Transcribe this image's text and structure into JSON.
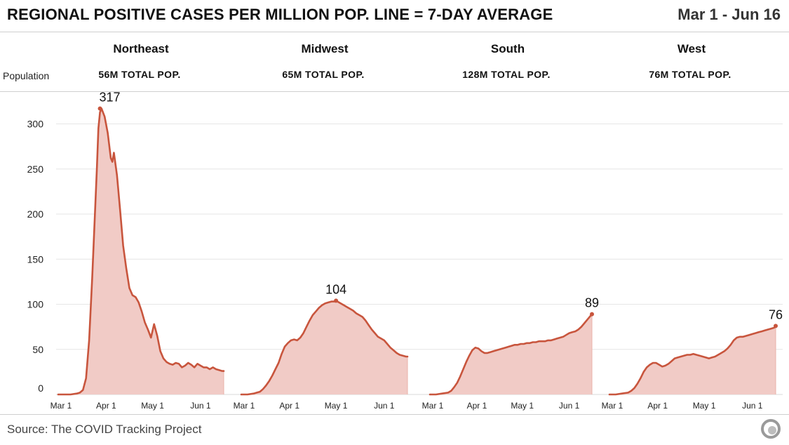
{
  "header": {
    "title": "REGIONAL POSITIVE CASES PER MILLION POP. LINE = 7-DAY AVERAGE",
    "date_range": "Mar 1 - Jun 16",
    "population_label": "Population"
  },
  "footer": {
    "source": "Source: The COVID Tracking Project",
    "logo_icon": "covid-tracking-project-logo-icon"
  },
  "colors": {
    "line": "#c8553d",
    "fill": "#f1cbc6",
    "grid": "#e6e6e6",
    "axis_text": "#222222"
  },
  "chart_data": {
    "type": "area",
    "title": "REGIONAL POSITIVE CASES PER MILLION POP. LINE = 7-DAY AVERAGE",
    "ylabel": "",
    "xlabel": "",
    "ylim": [
      0,
      330
    ],
    "yticks": [
      0,
      50,
      100,
      150,
      200,
      250,
      300
    ],
    "x_domain_days": [
      0,
      107
    ],
    "xtick_labels": [
      "Mar 1",
      "Apr 1",
      "May 1",
      "Jun 1"
    ],
    "xtick_days": [
      0,
      31,
      61,
      92
    ],
    "series": [
      {
        "name": "Northeast",
        "population": "56M TOTAL POP.",
        "peak_label": "317",
        "peak_day": 27,
        "peak_value": 317,
        "days": [
          0,
          8,
          12,
          14,
          16,
          18,
          20,
          22,
          24,
          25,
          26,
          27,
          28,
          30,
          32,
          34,
          35,
          36,
          38,
          40,
          42,
          44,
          46,
          48,
          50,
          52,
          54,
          56,
          58,
          60,
          62,
          64,
          66,
          68,
          70,
          72,
          74,
          76,
          78,
          80,
          82,
          84,
          86,
          88,
          90,
          92,
          94,
          96,
          98,
          100,
          102,
          104,
          106,
          107
        ],
        "values": [
          0,
          0,
          1,
          2,
          5,
          18,
          60,
          130,
          210,
          250,
          295,
          313,
          317,
          308,
          290,
          262,
          258,
          268,
          243,
          205,
          165,
          140,
          118,
          110,
          108,
          102,
          92,
          80,
          72,
          63,
          78,
          65,
          48,
          40,
          36,
          34,
          33,
          35,
          34,
          30,
          32,
          35,
          33,
          30,
          34,
          32,
          30,
          30,
          28,
          30,
          28,
          27,
          26,
          26
        ]
      },
      {
        "name": "Midwest",
        "population": "65M TOTAL POP.",
        "peak_label": "104",
        "peak_day": 61,
        "peak_value": 104,
        "days": [
          0,
          4,
          8,
          10,
          12,
          14,
          16,
          18,
          20,
          22,
          24,
          26,
          28,
          30,
          32,
          34,
          36,
          38,
          40,
          42,
          44,
          46,
          48,
          50,
          52,
          54,
          56,
          58,
          60,
          61,
          62,
          64,
          66,
          68,
          70,
          72,
          74,
          76,
          78,
          80,
          82,
          84,
          86,
          88,
          90,
          92,
          94,
          96,
          98,
          100,
          102,
          104,
          106,
          107
        ],
        "values": [
          0,
          0,
          1,
          2,
          3,
          6,
          10,
          15,
          21,
          28,
          35,
          45,
          53,
          57,
          60,
          61,
          60,
          63,
          68,
          75,
          82,
          88,
          92,
          96,
          99,
          101,
          102,
          103,
          103,
          104,
          103,
          101,
          99,
          97,
          95,
          93,
          90,
          88,
          86,
          82,
          77,
          72,
          68,
          64,
          62,
          60,
          56,
          52,
          49,
          46,
          44,
          43,
          42,
          42
        ]
      },
      {
        "name": "South",
        "population": "128M TOTAL POP.",
        "peak_label": "89",
        "peak_day": 107,
        "peak_value": 89,
        "days": [
          0,
          4,
          8,
          12,
          14,
          16,
          18,
          20,
          22,
          24,
          26,
          28,
          30,
          32,
          34,
          36,
          38,
          40,
          42,
          44,
          46,
          48,
          50,
          52,
          54,
          56,
          58,
          60,
          62,
          64,
          66,
          68,
          70,
          72,
          74,
          76,
          78,
          80,
          82,
          84,
          86,
          88,
          90,
          92,
          94,
          96,
          98,
          100,
          102,
          104,
          106,
          107
        ],
        "values": [
          0,
          0,
          1,
          2,
          4,
          8,
          13,
          20,
          28,
          36,
          43,
          49,
          52,
          51,
          48,
          46,
          46,
          47,
          48,
          49,
          50,
          51,
          52,
          53,
          54,
          55,
          55,
          56,
          56,
          57,
          57,
          58,
          58,
          59,
          59,
          59,
          60,
          60,
          61,
          62,
          63,
          64,
          66,
          68,
          69,
          70,
          72,
          75,
          79,
          83,
          87,
          89
        ]
      },
      {
        "name": "West",
        "population": "76M TOTAL POP.",
        "peak_label": "76",
        "peak_day": 107,
        "peak_value": 76,
        "days": [
          0,
          4,
          8,
          12,
          14,
          16,
          18,
          20,
          22,
          24,
          26,
          28,
          30,
          32,
          34,
          36,
          38,
          40,
          42,
          44,
          46,
          48,
          50,
          52,
          54,
          56,
          58,
          60,
          62,
          64,
          66,
          68,
          70,
          72,
          74,
          76,
          78,
          80,
          82,
          84,
          86,
          88,
          90,
          92,
          94,
          96,
          98,
          100,
          102,
          104,
          106,
          107
        ],
        "values": [
          0,
          0,
          1,
          2,
          4,
          7,
          12,
          18,
          25,
          30,
          33,
          35,
          35,
          33,
          31,
          32,
          34,
          37,
          40,
          41,
          42,
          43,
          44,
          44,
          45,
          44,
          43,
          42,
          41,
          40,
          41,
          42,
          44,
          46,
          48,
          51,
          55,
          60,
          63,
          64,
          64,
          65,
          66,
          67,
          68,
          69,
          70,
          71,
          72,
          73,
          74,
          76
        ]
      }
    ]
  }
}
